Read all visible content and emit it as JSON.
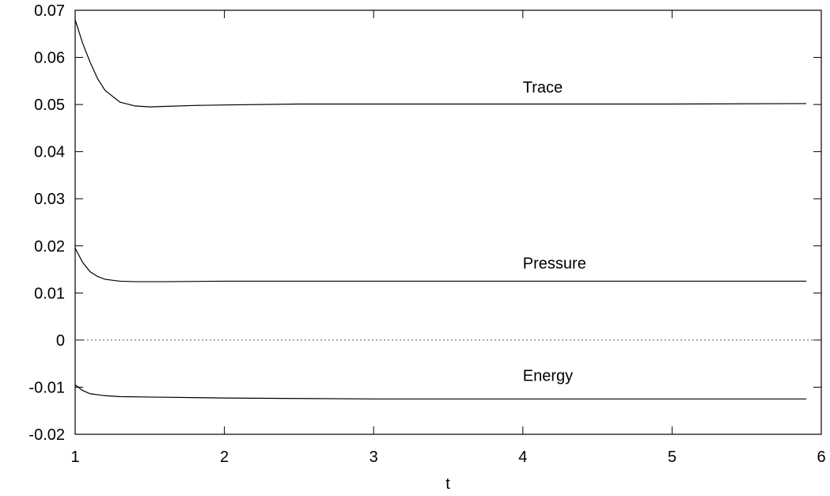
{
  "chart_data": {
    "type": "line",
    "title": "",
    "xlabel": "t",
    "ylabel": "",
    "xlim": [
      1,
      6
    ],
    "ylim": [
      -0.02,
      0.07
    ],
    "xticks": [
      1,
      2,
      3,
      4,
      5,
      6
    ],
    "xtick_labels": [
      "1",
      "2",
      "3",
      "4",
      "5",
      "6"
    ],
    "yticks": [
      -0.02,
      -0.01,
      0,
      0.01,
      0.02,
      0.03,
      0.04,
      0.05,
      0.06,
      0.07
    ],
    "ytick_labels": [
      "-0.02",
      "-0.01",
      "0",
      "0.01",
      "0.02",
      "0.03",
      "0.04",
      "0.05",
      "0.06",
      "0.07"
    ],
    "grid": false,
    "legend": "none",
    "series": [
      {
        "name": "Trace",
        "x": [
          1.0,
          1.05,
          1.1,
          1.15,
          1.2,
          1.3,
          1.4,
          1.5,
          1.6,
          1.8,
          2.0,
          2.5,
          3.0,
          4.0,
          5.0,
          5.9
        ],
        "y": [
          0.068,
          0.063,
          0.059,
          0.0555,
          0.053,
          0.0505,
          0.0497,
          0.0495,
          0.0496,
          0.0498,
          0.0499,
          0.0501,
          0.0501,
          0.0501,
          0.0501,
          0.0502
        ]
      },
      {
        "name": "Pressure",
        "x": [
          1.0,
          1.05,
          1.1,
          1.15,
          1.2,
          1.3,
          1.4,
          1.6,
          2.0,
          3.0,
          4.0,
          5.0,
          5.9
        ],
        "y": [
          0.0195,
          0.0165,
          0.0145,
          0.0135,
          0.0129,
          0.0125,
          0.0124,
          0.0124,
          0.0125,
          0.0125,
          0.0125,
          0.0125,
          0.0125
        ]
      },
      {
        "name": "Energy",
        "x": [
          1.0,
          1.05,
          1.1,
          1.2,
          1.3,
          1.5,
          2.0,
          2.5,
          3.0,
          4.0,
          5.0,
          5.9
        ],
        "y": [
          -0.0095,
          -0.0107,
          -0.0114,
          -0.0118,
          -0.012,
          -0.0121,
          -0.0123,
          -0.0124,
          -0.0125,
          -0.0125,
          -0.0125,
          -0.0125
        ]
      }
    ],
    "reference_line": {
      "y": 0,
      "style": "dotted"
    },
    "annotations": [
      {
        "text": "Trace",
        "x": 4.0,
        "y": 0.0525
      },
      {
        "text": "Pressure",
        "x": 4.0,
        "y": 0.0152
      },
      {
        "text": "Energy",
        "x": 4.0,
        "y": -0.0087
      }
    ],
    "colors": {
      "line": "#000000",
      "axes": "#000000",
      "zero_line": "#555555"
    }
  }
}
